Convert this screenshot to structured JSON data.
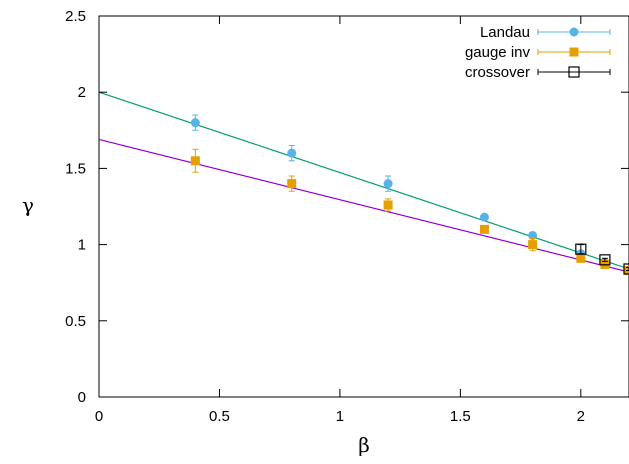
{
  "chart_data": {
    "type": "scatter",
    "xlabel": "β",
    "ylabel": "γ",
    "xlim": [
      0,
      2.2
    ],
    "ylim": [
      0,
      2.5
    ],
    "x_ticks": [
      "0",
      "0.5",
      "1",
      "1.5",
      "2"
    ],
    "y_ticks": [
      "0",
      "0.5",
      "1",
      "1.5",
      "2",
      "2.5"
    ],
    "x_tick_values": [
      0,
      0.5,
      1,
      1.5,
      2
    ],
    "y_tick_values": [
      0,
      0.5,
      1,
      1.5,
      2,
      2.5
    ],
    "grid": false,
    "legend_position": "top-right",
    "series": [
      {
        "name": "Landau",
        "marker": "circle",
        "color": "#56b4e9",
        "points": [
          {
            "x": 0.4,
            "y": 1.8,
            "err": 0.05
          },
          {
            "x": 0.8,
            "y": 1.6,
            "err": 0.05
          },
          {
            "x": 1.2,
            "y": 1.4,
            "err": 0.05
          },
          {
            "x": 1.6,
            "y": 1.18,
            "err": 0.01
          },
          {
            "x": 1.8,
            "y": 1.06,
            "err": 0.01
          },
          {
            "x": 2.0,
            "y": 0.94,
            "err": 0.01
          },
          {
            "x": 2.1,
            "y": 0.88,
            "err": 0.01
          },
          {
            "x": 2.2,
            "y": 0.83,
            "err": 0.01
          }
        ]
      },
      {
        "name": "gauge inv",
        "marker": "square",
        "color": "#e69f00",
        "points": [
          {
            "x": 0.4,
            "y": 1.55,
            "err": 0.075
          },
          {
            "x": 0.8,
            "y": 1.4,
            "err": 0.05
          },
          {
            "x": 1.2,
            "y": 1.26,
            "err": 0.04
          },
          {
            "x": 1.6,
            "y": 1.1,
            "err": 0.01
          },
          {
            "x": 1.8,
            "y": 1.0,
            "err": 0.04
          },
          {
            "x": 2.0,
            "y": 0.91,
            "err": 0.01
          },
          {
            "x": 2.1,
            "y": 0.87,
            "err": 0.01
          },
          {
            "x": 2.2,
            "y": 0.83,
            "err": 0.01
          }
        ]
      },
      {
        "name": "crossover",
        "marker": "open-square",
        "color": "#000000",
        "points": [
          {
            "x": 2.0,
            "y": 0.97,
            "err": 0.03
          },
          {
            "x": 2.1,
            "y": 0.9,
            "err": 0.01
          },
          {
            "x": 2.2,
            "y": 0.84,
            "err": 0.01
          }
        ]
      }
    ],
    "fit_lines": [
      {
        "color": "#009e73",
        "x": [
          0,
          2.2
        ],
        "y": [
          2.0,
          0.84
        ]
      },
      {
        "color": "#9400d3",
        "x": [
          0,
          2.2
        ],
        "y": [
          1.69,
          0.82
        ]
      }
    ]
  }
}
